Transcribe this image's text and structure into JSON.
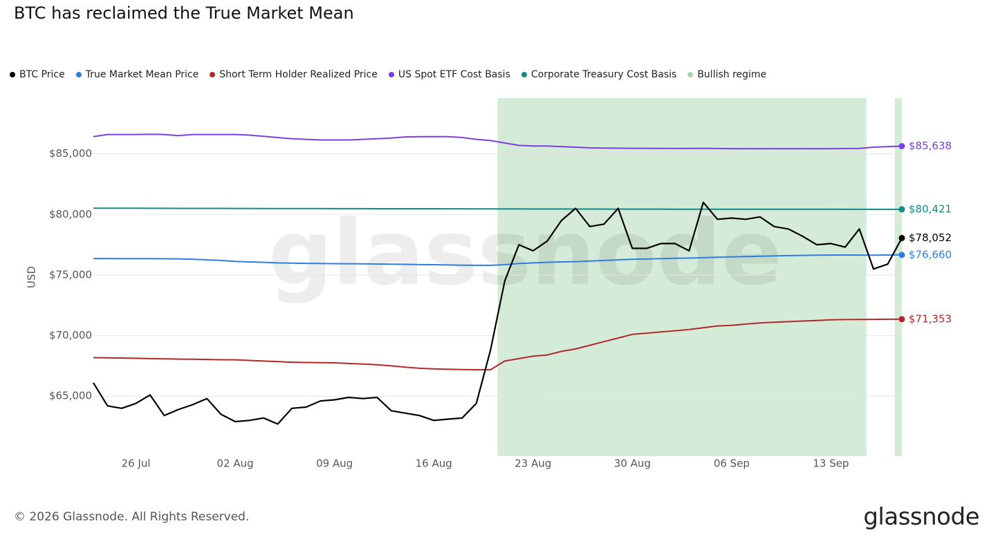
{
  "chart_data": {
    "type": "line",
    "title": "BTC has reclaimed the True Market Mean",
    "y_label": "USD",
    "watermark": "glassnode",
    "footer": "© 2026 Glassnode. All Rights Reserved.",
    "logo": "glassnode",
    "categories": [
      null,
      null,
      null,
      "26 Jul",
      null,
      null,
      null,
      null,
      null,
      null,
      "02 Aug",
      null,
      null,
      null,
      null,
      null,
      null,
      "09 Aug",
      null,
      null,
      null,
      null,
      null,
      null,
      "16 Aug",
      null,
      null,
      null,
      null,
      null,
      null,
      "23 Aug",
      null,
      null,
      null,
      null,
      null,
      null,
      "30 Aug",
      null,
      null,
      null,
      null,
      null,
      null,
      "06 Sep",
      null,
      null,
      null,
      null,
      null,
      null,
      "13 Sep",
      null,
      null,
      null,
      null,
      null
    ],
    "ylim": [
      60050,
      89600
    ],
    "yticks": [
      {
        "value": 65000,
        "label": "$65,000"
      },
      {
        "value": 70000,
        "label": "$70,000"
      },
      {
        "value": 75000,
        "label": "$75,000"
      },
      {
        "value": 80000,
        "label": "$80,000"
      },
      {
        "value": 85000,
        "label": "$85,000"
      }
    ],
    "grid": true,
    "series": [
      {
        "name": "BTC Price",
        "color": "#000000",
        "last_label": "$78,052",
        "values": [
          66100,
          64200,
          64000,
          64400,
          65100,
          63400,
          63900,
          64300,
          64800,
          63500,
          62900,
          63000,
          63200,
          62700,
          64000,
          64100,
          64600,
          64700,
          64900,
          64800,
          64900,
          63800,
          63600,
          63400,
          63000,
          63100,
          63200,
          64400,
          68800,
          74500,
          77500,
          77000,
          77800,
          79500,
          80500,
          79000,
          79200,
          80500,
          77200,
          77200,
          77600,
          77600,
          77000,
          81000,
          79600,
          79700,
          79600,
          79800,
          79000,
          78800,
          78200,
          77500,
          77600,
          77300,
          78800,
          75500,
          75900,
          78052
        ]
      },
      {
        "name": "True Market Mean Price",
        "color": "#2f7de1",
        "last_label": "$76,660",
        "values": [
          76360,
          76360,
          76350,
          76350,
          76350,
          76340,
          76330,
          76300,
          76250,
          76200,
          76120,
          76080,
          76050,
          76000,
          75980,
          75960,
          75950,
          75940,
          75930,
          75920,
          75910,
          75900,
          75880,
          75860,
          75850,
          75830,
          75810,
          75800,
          75800,
          75850,
          75950,
          76000,
          76050,
          76080,
          76100,
          76150,
          76200,
          76250,
          76300,
          76320,
          76350,
          76380,
          76400,
          76430,
          76460,
          76500,
          76520,
          76550,
          76580,
          76600,
          76620,
          76640,
          76650,
          76650,
          76650,
          76640,
          76650,
          76660
        ]
      },
      {
        "name": "Short Term Holder Realized Price",
        "color": "#b5262a",
        "last_label": "$71,353",
        "values": [
          68180,
          68170,
          68150,
          68130,
          68100,
          68080,
          68060,
          68050,
          68030,
          68010,
          68000,
          67950,
          67900,
          67850,
          67800,
          67780,
          67760,
          67750,
          67700,
          67650,
          67600,
          67500,
          67400,
          67300,
          67250,
          67220,
          67200,
          67180,
          67180,
          67900,
          68100,
          68300,
          68400,
          68700,
          68900,
          69200,
          69500,
          69800,
          70100,
          70200,
          70300,
          70400,
          70500,
          70650,
          70800,
          70850,
          70950,
          71050,
          71100,
          71150,
          71200,
          71250,
          71300,
          71320,
          71330,
          71340,
          71350,
          71353
        ]
      },
      {
        "name": "US Spot ETF Cost Basis",
        "color": "#7b3fe4",
        "last_label": "$85,638",
        "values": [
          86420,
          86600,
          86600,
          86600,
          86620,
          86600,
          86500,
          86600,
          86600,
          86600,
          86600,
          86550,
          86450,
          86350,
          86250,
          86200,
          86150,
          86150,
          86150,
          86200,
          86250,
          86300,
          86400,
          86420,
          86420,
          86420,
          86350,
          86200,
          86100,
          85900,
          85700,
          85650,
          85650,
          85600,
          85550,
          85500,
          85480,
          85470,
          85460,
          85460,
          85450,
          85450,
          85450,
          85460,
          85440,
          85430,
          85430,
          85430,
          85430,
          85430,
          85430,
          85430,
          85430,
          85440,
          85450,
          85550,
          85600,
          85638
        ]
      },
      {
        "name": "Corporate Treasury Cost Basis",
        "color": "#138a84",
        "last_label": "$80,421",
        "values": [
          80510,
          80510,
          80510,
          80510,
          80505,
          80505,
          80500,
          80500,
          80500,
          80500,
          80495,
          80495,
          80490,
          80490,
          80490,
          80485,
          80485,
          80480,
          80480,
          80480,
          80475,
          80475,
          80470,
          80470,
          80470,
          80465,
          80465,
          80460,
          80460,
          80455,
          80455,
          80450,
          80450,
          80450,
          80445,
          80445,
          80445,
          80440,
          80440,
          80440,
          80440,
          80435,
          80435,
          80435,
          80435,
          80430,
          80430,
          80430,
          80430,
          80428,
          80428,
          80426,
          80426,
          80424,
          80424,
          80422,
          80422,
          80421
        ]
      }
    ],
    "regime": {
      "name": "Bullish regime",
      "color": "#a8d8b0",
      "values": [
        null,
        null,
        null,
        null,
        null,
        null,
        null,
        null,
        null,
        null,
        null,
        null,
        null,
        null,
        null,
        null,
        null,
        null,
        null,
        null,
        null,
        null,
        null,
        null,
        null,
        null,
        null,
        null,
        null,
        1,
        1,
        1,
        1,
        1,
        1,
        1,
        1,
        1,
        1,
        1,
        1,
        1,
        1,
        1,
        1,
        1,
        1,
        1,
        1,
        1,
        1,
        1,
        1,
        1,
        1,
        null,
        null,
        1
      ]
    }
  }
}
